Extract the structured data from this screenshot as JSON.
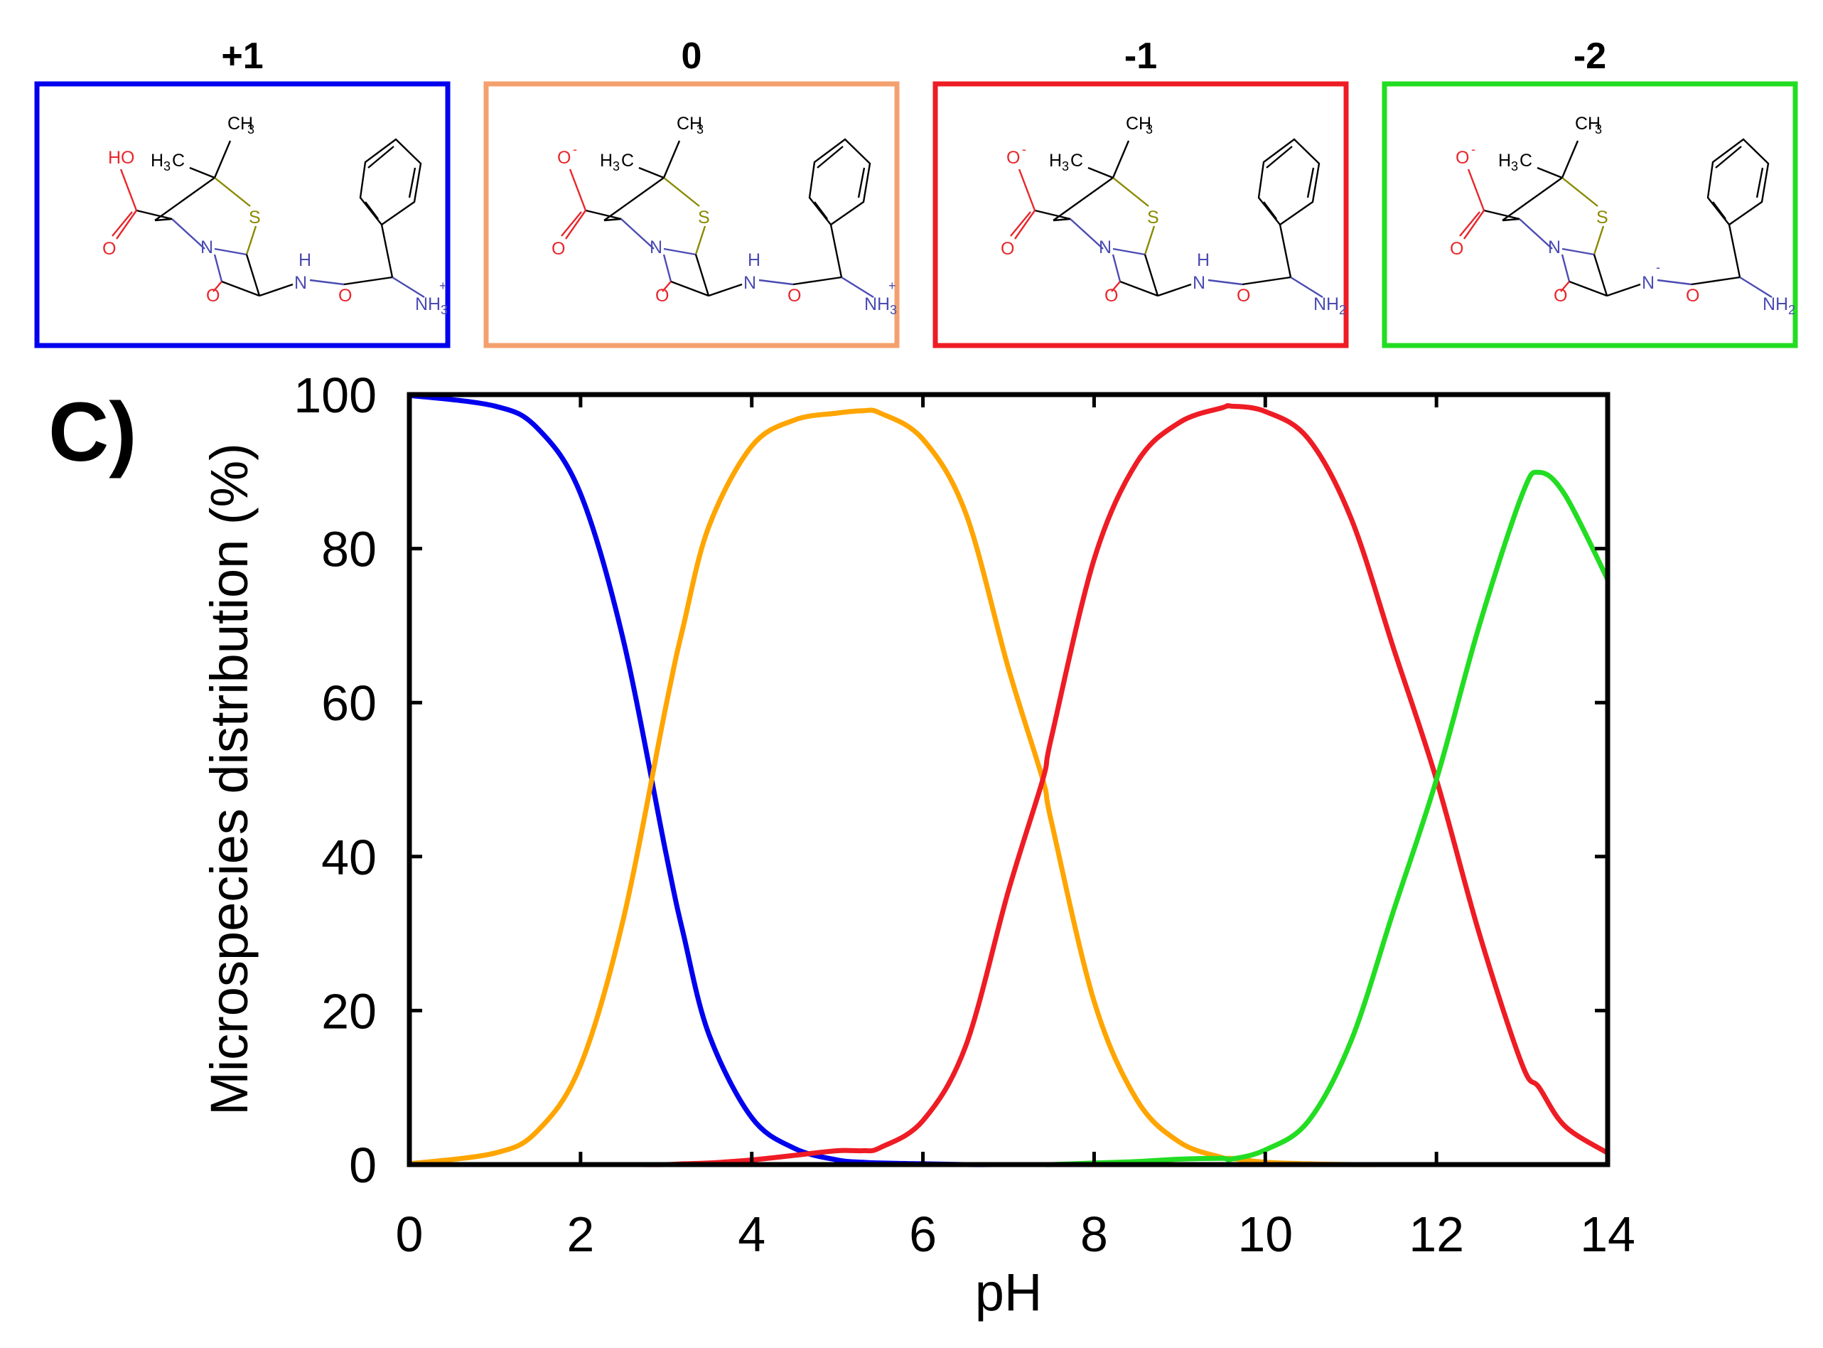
{
  "panel_letter": "C)",
  "species": [
    {
      "charge_label": "+1",
      "color": "#0000ee",
      "carboxyl": "HO",
      "carboxyl_charge": "",
      "amide_n": "N",
      "amide_h": "H",
      "amide_n_charge": "",
      "amine_main": "NH",
      "amine_sub": "3",
      "amine_charge": "+"
    },
    {
      "charge_label": "0",
      "color": "#f4a06e",
      "carboxyl": "O",
      "carboxyl_charge": "-",
      "amide_n": "N",
      "amide_h": "H",
      "amide_n_charge": "",
      "amine_main": "NH",
      "amine_sub": "3",
      "amine_charge": "+"
    },
    {
      "charge_label": "-1",
      "color": "#ee1c24",
      "carboxyl": "O",
      "carboxyl_charge": "-",
      "amide_n": "N",
      "amide_h": "H",
      "amide_n_charge": "",
      "amine_main": "NH",
      "amine_sub": "2",
      "amine_charge": ""
    },
    {
      "charge_label": "-2",
      "color": "#22dd22",
      "carboxyl": "O",
      "carboxyl_charge": "-",
      "amide_n": "N",
      "amide_h": "",
      "amide_n_charge": "-",
      "amine_main": "NH",
      "amine_sub": "2",
      "amine_charge": ""
    }
  ],
  "molecule_text": {
    "ch3": "CH",
    "ch3_sub": "3",
    "h3c_h": "H",
    "h3c_sub": "3",
    "h3c_c": "C",
    "sulfur": "S",
    "ring_n": "N",
    "oxygen": "O"
  },
  "chart_data": {
    "type": "line",
    "title": "",
    "xlabel": "pH",
    "ylabel": "Microspecies distribution (%)",
    "xlim": [
      0,
      14
    ],
    "ylim": [
      0,
      100
    ],
    "xticks": [
      0,
      2,
      4,
      6,
      8,
      10,
      12,
      14
    ],
    "yticks": [
      0,
      20,
      40,
      60,
      80,
      100
    ],
    "grid": false,
    "legend": "none",
    "x": [
      0,
      1,
      1.5,
      2,
      2.5,
      3,
      3.2,
      3.5,
      4,
      4.5,
      5,
      5.3,
      5.5,
      6,
      6.5,
      7,
      7.4,
      7.5,
      8,
      8.5,
      9,
      9.5,
      9.6,
      10,
      10.5,
      11,
      11.5,
      12,
      12.5,
      13,
      13.2,
      13.5,
      14
    ],
    "series": [
      {
        "color": "#0000ee",
        "values": [
          99.9,
          98.5,
          95.6,
          87.1,
          68.1,
          40.3,
          30.0,
          16.9,
          6.1,
          2.1,
          0.6,
          0.3,
          0.2,
          0.1,
          0.0,
          0.0,
          0.0,
          0.0,
          0.0,
          0.0,
          0.0,
          0.0,
          0.0,
          0.0,
          0.0,
          0.0,
          0.0,
          0.0,
          0.0,
          0.0,
          0.0,
          0.0,
          0.0
        ]
      },
      {
        "color": "#ffa500",
        "values": [
          0.1,
          1.5,
          4.4,
          12.9,
          31.9,
          59.7,
          69.9,
          82.9,
          93.3,
          96.7,
          97.6,
          97.9,
          97.6,
          94.2,
          84.6,
          64.4,
          50.0,
          44.6,
          21.2,
          8.4,
          2.9,
          0.9,
          0.8,
          0.3,
          0.1,
          0.0,
          0.0,
          0.0,
          0.0,
          0.0,
          0.0,
          0.0,
          0.0
        ]
      },
      {
        "color": "#ee1c24",
        "values": [
          0.0,
          0.0,
          0.0,
          0.0,
          0.0,
          0.0,
          0.1,
          0.2,
          0.6,
          1.2,
          1.8,
          1.8,
          2.2,
          5.7,
          15.4,
          35.6,
          50.0,
          55.4,
          78.6,
          91.2,
          96.4,
          98.3,
          98.5,
          97.8,
          94.3,
          84.0,
          67.0,
          50.0,
          30.0,
          13.0,
          10.0,
          5.0,
          1.5
        ]
      },
      {
        "color": "#22dd22",
        "values": [
          0.0,
          0.0,
          0.0,
          0.0,
          0.0,
          0.0,
          0.0,
          0.0,
          0.0,
          0.0,
          0.0,
          0.0,
          0.0,
          0.0,
          0.0,
          0.0,
          0.0,
          0.0,
          0.2,
          0.4,
          0.7,
          0.8,
          0.7,
          1.9,
          5.6,
          16.0,
          33.0,
          50.0,
          70.0,
          87.0,
          89.9,
          87.0,
          76.0
        ]
      }
    ]
  }
}
